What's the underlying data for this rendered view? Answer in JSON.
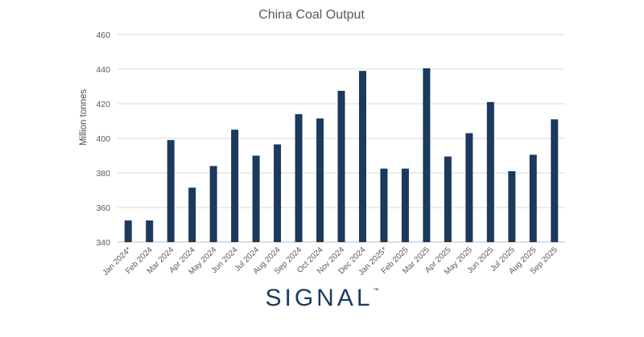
{
  "chart_data": {
    "type": "bar",
    "title": "China Coal Output",
    "xlabel": "",
    "ylabel": "Million tonnes",
    "ylim": [
      340,
      460
    ],
    "yticks": [
      340,
      360,
      380,
      400,
      420,
      440,
      460
    ],
    "grid": true,
    "legend": "none",
    "bar_color": "#1a3a5e",
    "categories": [
      "Jan 2024*",
      "Feb 2024",
      "Mar 2024",
      "Apr 2024",
      "May 2024",
      "Jun 2024",
      "Jul 2024",
      "Aug 2024",
      "Sep 2024",
      "Oct 2024",
      "Nov 2024",
      "Dec 2024",
      "Jan 2025*",
      "Feb 2025",
      "Mar 2025",
      "Apr 2025",
      "May 2025",
      "Jun 2025",
      "Jul 2025",
      "Aug 2025",
      "Sep 2025"
    ],
    "values": [
      352.5,
      352.5,
      399,
      371.5,
      384,
      405,
      390,
      396.5,
      414,
      411.5,
      427.5,
      439,
      382.5,
      382.5,
      440.5,
      389.5,
      403,
      421,
      381,
      390.5,
      411
    ]
  },
  "brand": {
    "logo_text": "SIGNAL",
    "trademark": "™",
    "color": "#1a3a5e"
  }
}
